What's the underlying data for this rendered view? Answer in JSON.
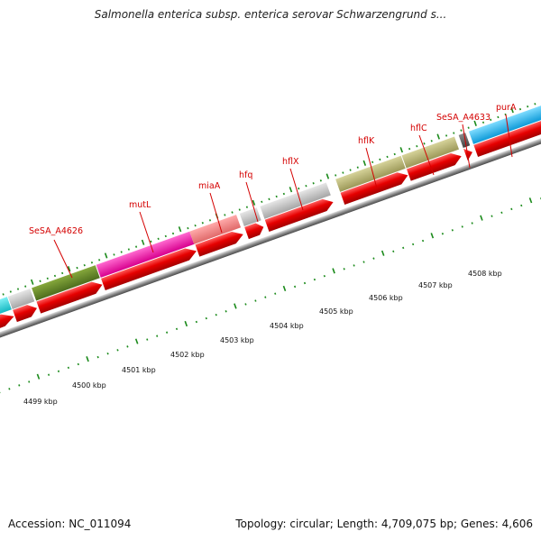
{
  "title": "Salmonella enterica subsp. enterica serovar Schwarzengrund s...",
  "accession": "Accession: NC_011094",
  "topology": "Topology: circular; Length: 4,709,075 bp; Genes: 4,606",
  "colors": {
    "cds_arrow": "#e60000",
    "label": "#d40000",
    "tick": "#1a8a1a",
    "backbone": "#8c8c8c"
  },
  "gene_labels": [
    {
      "id": "sesa4626",
      "text": "SeSA_A4626"
    },
    {
      "id": "mutl",
      "text": "mutL"
    },
    {
      "id": "miaa",
      "text": "miaA"
    },
    {
      "id": "hfq",
      "text": "hfq"
    },
    {
      "id": "hflx",
      "text": "hflX"
    },
    {
      "id": "hflk",
      "text": "hflK"
    },
    {
      "id": "hflc",
      "text": "hflC"
    },
    {
      "id": "sesa4633",
      "text": "SeSA_A4633"
    },
    {
      "id": "pura",
      "text": "purA"
    }
  ],
  "kbp_labels": [
    "4499 kbp",
    "4500 kbp",
    "4501 kbp",
    "4502 kbp",
    "4503 kbp",
    "4504 kbp",
    "4505 kbp",
    "4506 kbp",
    "4507 kbp",
    "4508 kbp"
  ]
}
